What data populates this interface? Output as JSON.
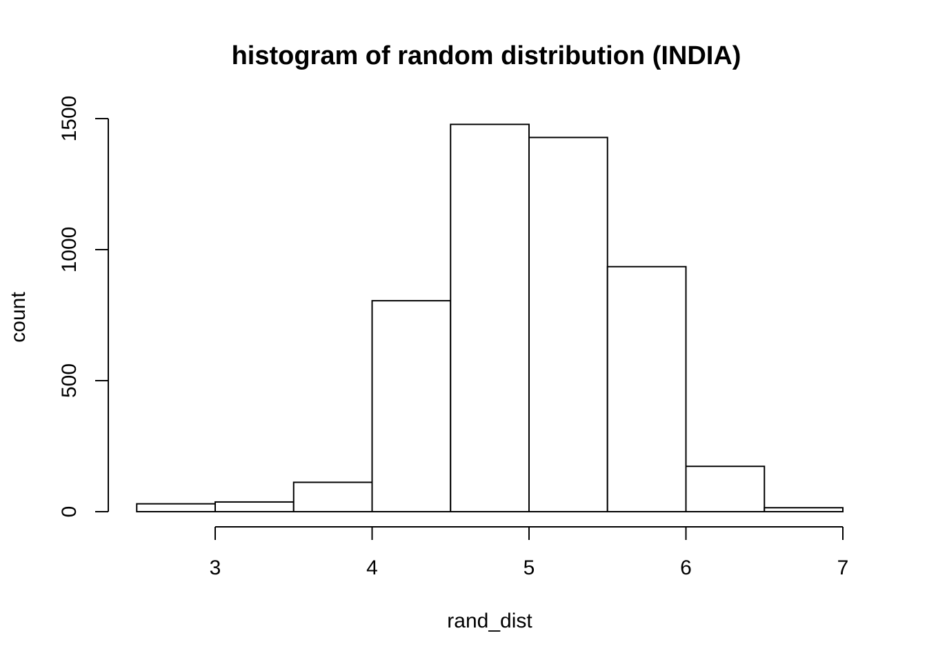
{
  "chart_data": {
    "type": "bar",
    "subtype": "histogram",
    "title": "histogram of random distribution (INDIA)",
    "xlabel": "rand_dist",
    "ylabel": "count",
    "bins": [
      {
        "x0": 2.5,
        "x1": 3.0,
        "count": 30
      },
      {
        "x0": 3.0,
        "x1": 3.5,
        "count": 37
      },
      {
        "x0": 3.5,
        "x1": 4.0,
        "count": 112
      },
      {
        "x0": 4.0,
        "x1": 4.5,
        "count": 805
      },
      {
        "x0": 4.5,
        "x1": 5.0,
        "count": 1478
      },
      {
        "x0": 5.0,
        "x1": 5.5,
        "count": 1428
      },
      {
        "x0": 5.5,
        "x1": 6.0,
        "count": 935
      },
      {
        "x0": 6.0,
        "x1": 6.5,
        "count": 173
      },
      {
        "x0": 6.5,
        "x1": 7.0,
        "count": 15
      }
    ],
    "xlim": [
      2.5,
      7.0
    ],
    "ylim": [
      0,
      1500
    ],
    "xticks": [
      3,
      4,
      5,
      6,
      7
    ],
    "yticks": [
      0,
      500,
      1000,
      1500
    ],
    "grid": false,
    "legend": "none"
  }
}
